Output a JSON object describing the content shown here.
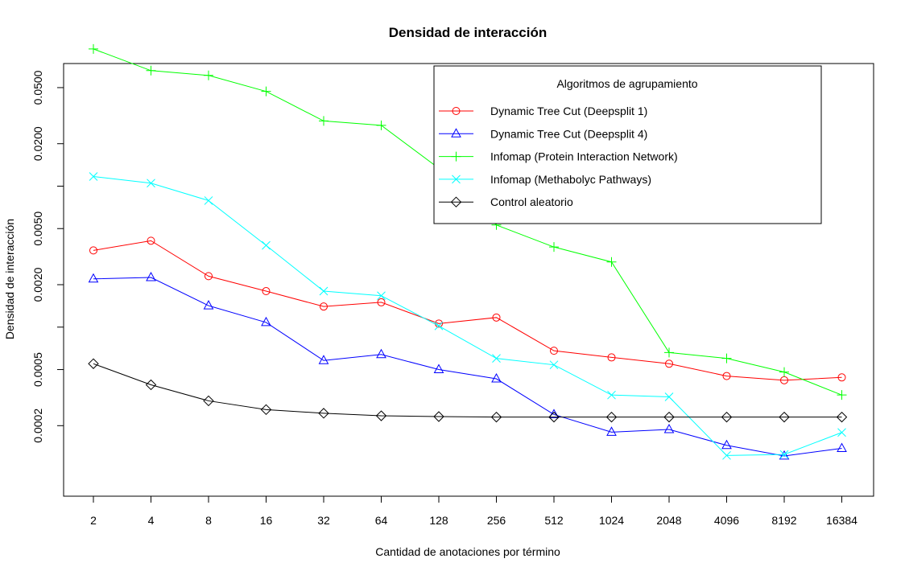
{
  "chart_data": {
    "type": "line",
    "title": "Densidad de interacción",
    "xlabel": "Cantidad de anotaciones por término",
    "ylabel": "Densidad de interacción",
    "y_scale": "log",
    "categories": [
      "2",
      "4",
      "8",
      "16",
      "32",
      "64",
      "128",
      "256",
      "512",
      "1024",
      "2048",
      "4096",
      "8192",
      "16384"
    ],
    "yticks": [
      0.0002,
      0.0005,
      0.002,
      0.005,
      0.02,
      0.05
    ],
    "ytick_labels": [
      "0.0002",
      "0.0005",
      "0.0020",
      "0.0050",
      "0.0200",
      "0.0500"
    ],
    "ylim": [
      0.000145,
      0.09
    ],
    "legend": {
      "title": "Algoritmos de agrupamiento",
      "position": "top-right"
    },
    "series": [
      {
        "name": "Dynamic Tree Cut (Deepsplit 1)",
        "color": "#ff0000",
        "marker": "circle",
        "values": [
          0.0035,
          0.0041,
          0.0023,
          0.0018,
          0.0014,
          0.0015,
          0.00106,
          0.00117,
          0.00068,
          0.00061,
          0.00055,
          0.00045,
          0.00042,
          0.00044
        ]
      },
      {
        "name": "Dynamic Tree Cut (Deepsplit 4)",
        "color": "#0000ff",
        "marker": "triangle",
        "values": [
          0.0022,
          0.00225,
          0.00142,
          0.00108,
          0.00058,
          0.00064,
          0.0005,
          0.00043,
          0.00024,
          0.00018,
          0.000188,
          0.000145,
          0.000122,
          0.000138
        ]
      },
      {
        "name": "Infomap (Protein Interaction Network)",
        "color": "#00ff00",
        "marker": "plus",
        "values": [
          0.094,
          0.066,
          0.061,
          0.047,
          0.029,
          0.027,
          0.0134,
          0.0053,
          0.0037,
          0.0029,
          0.00066,
          0.0006,
          0.00048,
          0.00033
        ]
      },
      {
        "name": "Infomap (Methabolyc Pathways)",
        "color": "#00ffff",
        "marker": "cross",
        "values": [
          0.0117,
          0.0105,
          0.0079,
          0.0038,
          0.0018,
          0.00167,
          0.00102,
          0.0006,
          0.00054,
          0.00033,
          0.00032,
          0.000123,
          0.000125,
          0.000179
        ]
      },
      {
        "name": "Control aleatorio",
        "color": "#000000",
        "marker": "diamond",
        "values": [
          0.00055,
          0.00039,
          0.0003,
          0.00026,
          0.000245,
          0.000235,
          0.000232,
          0.00023,
          0.00023,
          0.00023,
          0.00023,
          0.00023,
          0.00023,
          0.00023
        ]
      }
    ]
  }
}
